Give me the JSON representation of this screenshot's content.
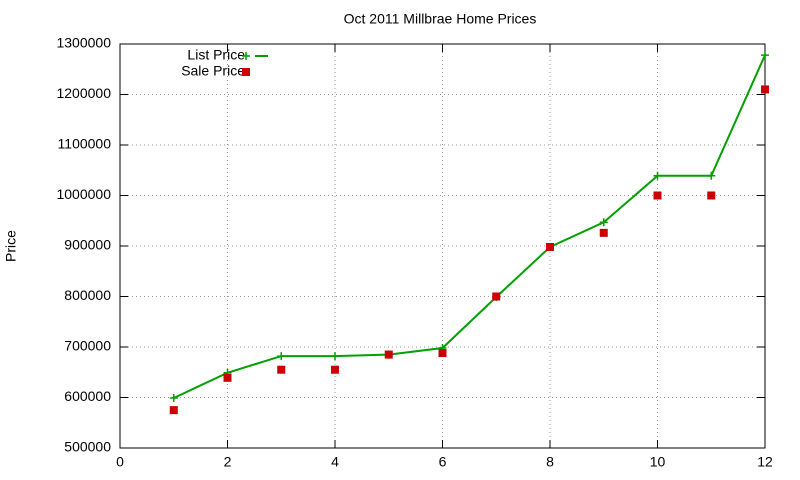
{
  "chart_data": {
    "type": "line",
    "title": "Oct 2011 Millbrae Home Prices",
    "y_label": "Price",
    "x": [
      1,
      2,
      3,
      4,
      5,
      6,
      7,
      8,
      9,
      10,
      11,
      12
    ],
    "series": [
      {
        "name": "List Price",
        "color": "#00a000",
        "mode": "linespoints",
        "values": [
          599000,
          649000,
          682000,
          682000,
          685000,
          698000,
          799000,
          898000,
          947000,
          1039000,
          1039000,
          1278000
        ]
      },
      {
        "name": "Sale Price",
        "color": "#cc0000",
        "mode": "points",
        "values": [
          575000,
          639000,
          655000,
          655000,
          685000,
          688000,
          800000,
          898000,
          926000,
          1000000,
          1000000,
          1210000
        ]
      }
    ],
    "xlim": [
      0,
      12
    ],
    "xticks": [
      0,
      2,
      4,
      6,
      8,
      10,
      12
    ],
    "ylim": [
      500000,
      1300000
    ],
    "yticks": [
      500000,
      600000,
      700000,
      800000,
      900000,
      1000000,
      1100000,
      1200000,
      1300000
    ],
    "grid": true,
    "legend": "top-left"
  }
}
